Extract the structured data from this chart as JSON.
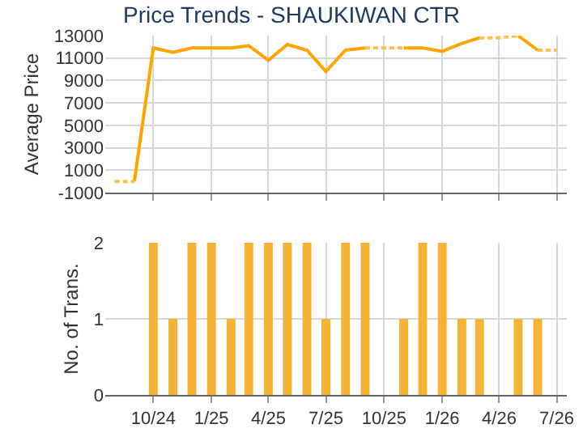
{
  "chart_data": [
    {
      "type": "line",
      "title": "Price Trends - SHAUKIWAN CTR",
      "ylabel": "Average Price",
      "xlim": [
        "2024-07-17",
        "2026-07-17"
      ],
      "xticks": [
        {
          "value": "2024-10",
          "label": null
        },
        {
          "value": "2025-01",
          "label": null
        },
        {
          "value": "2025-04",
          "label": null
        },
        {
          "value": "2025-07",
          "label": null
        },
        {
          "value": "2025-10",
          "label": null
        },
        {
          "value": "2026-01",
          "label": null
        },
        {
          "value": "2026-04",
          "label": null
        },
        {
          "value": "2026-07",
          "label": null
        }
      ],
      "ylim": [
        -1000,
        13000
      ],
      "yticks": [
        -1000,
        1000,
        3000,
        5000,
        7000,
        9000,
        11000,
        13000
      ],
      "grid": true,
      "marker": "none",
      "tick_labels": "y",
      "series": [
        {
          "color": "#ffa500",
          "line_style": "solid",
          "x": [
            "2024-09",
            "2024-10",
            "2024-11",
            "2024-12",
            "2025-01",
            "2025-02",
            "2025-03",
            "2025-04",
            "2025-05",
            "2025-06",
            "2025-07",
            "2025-08",
            "2025-09"
          ],
          "values": [
            0,
            11900,
            11500,
            11900,
            11900,
            11900,
            12100,
            10800,
            12200,
            11700,
            9800,
            11700,
            11900
          ]
        },
        {
          "color": "#ffa500",
          "line_style": "solid",
          "x": [
            "2025-11",
            "2025-12",
            "2026-01",
            "2026-02",
            "2026-03"
          ],
          "values": [
            11900,
            11900,
            11600,
            12300,
            12800
          ]
        },
        {
          "color": "#ffa500",
          "line_style": "solid",
          "x": [
            "2026-05",
            "2026-06"
          ],
          "values": [
            13000,
            11700
          ]
        },
        {
          "color": "#ffc04d",
          "line_style": "dotted",
          "x": [
            "2024-08",
            "2024-09"
          ],
          "values": [
            0,
            0
          ]
        },
        {
          "color": "#ffc04d",
          "line_style": "dotted",
          "x": [
            "2025-09",
            "2025-10",
            "2025-11"
          ],
          "values": [
            11900,
            11900,
            11900
          ]
        },
        {
          "color": "#ffc04d",
          "line_style": "dotted",
          "x": [
            "2026-03",
            "2026-04",
            "2026-05"
          ],
          "values": [
            12800,
            12800,
            13000
          ]
        },
        {
          "color": "#ffc04d",
          "line_style": "dotted",
          "x": [
            "2026-06",
            "2026-07"
          ],
          "values": [
            11700,
            11700
          ]
        }
      ]
    },
    {
      "type": "bar",
      "ylabel": "No. of Trans.",
      "xlim": [
        "2024-07-17",
        "2026-07-17"
      ],
      "xticks": [
        {
          "value": "2024-10",
          "label": "10/24"
        },
        {
          "value": "2025-01",
          "label": "1/25"
        },
        {
          "value": "2025-04",
          "label": "4/25"
        },
        {
          "value": "2025-07",
          "label": "7/25"
        },
        {
          "value": "2025-10",
          "label": "10/25"
        },
        {
          "value": "2026-01",
          "label": "1/26"
        },
        {
          "value": "2026-04",
          "label": "4/26"
        },
        {
          "value": "2026-07",
          "label": "7/26"
        }
      ],
      "ylim": [
        0,
        2
      ],
      "yticks": [
        0,
        1,
        2
      ],
      "grid": true,
      "x": [
        "2024-10",
        "2024-11",
        "2024-12",
        "2025-01",
        "2025-02",
        "2025-03",
        "2025-04",
        "2025-05",
        "2025-06",
        "2025-07",
        "2025-08",
        "2025-09",
        "2025-10",
        "2025-11",
        "2025-12",
        "2026-01",
        "2026-02",
        "2026-03",
        "2026-04",
        "2026-05",
        "2026-06"
      ],
      "values": [
        2,
        1,
        2,
        2,
        1,
        2,
        2,
        2,
        2,
        1,
        2,
        2,
        0,
        1,
        2,
        2,
        1,
        1,
        0,
        1,
        1
      ],
      "color": "#f5b335"
    }
  ]
}
